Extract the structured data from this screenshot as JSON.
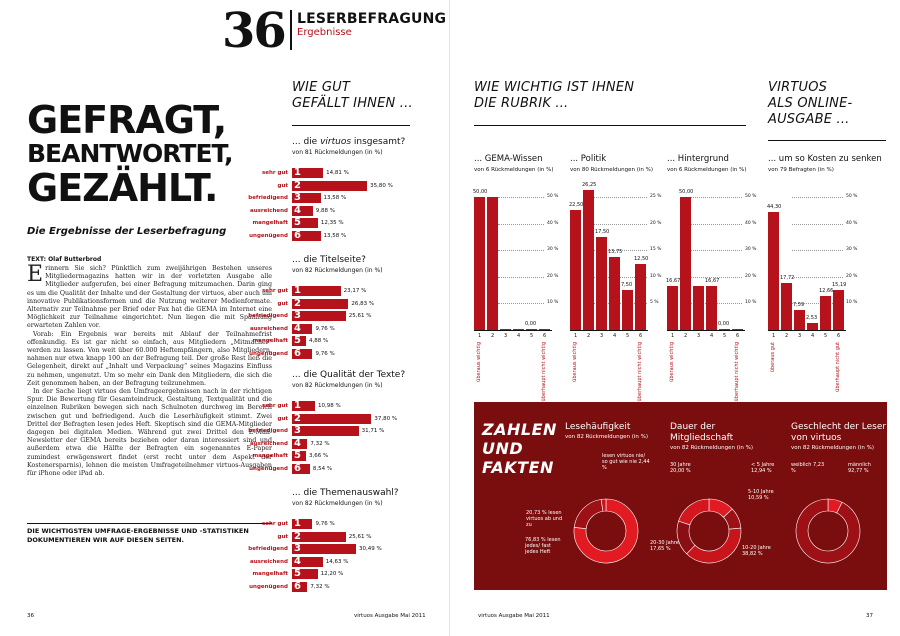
{
  "header": {
    "number": "36",
    "title": "LESERBEFRAGUNG",
    "subtitle": "Ergebnisse"
  },
  "headline": {
    "line1": "GEFRAGT,",
    "line2": "BEANTWORTET,",
    "line3": "GEZÄHLT.",
    "subtitle": "Die Ergebnisse der Leserbefragung"
  },
  "article": {
    "byline": "TEXT: Olaf Butterbrod",
    "dropcap": "E",
    "p1": "rinnern Sie sich? Pünktlich zum zweijährigen Bestehen unseres Mitgliedermagazins hatten wir in der vorletzten Ausgabe alle Mitglieder aufgerufen, bei einer Befragung mitzumachen. Darin ging es um die Qualität der Inhalte und der Gestaltung der virtuos, aber auch um innovative Publikationsformen und die Nutzung weiterer Medienformate. Alternativ zur Teilnahme per Brief oder Fax hat die GEMA im Internet eine Möglichkeit zur Teilnahme eingerichtet. Nun liegen die mit Spannung erwarteten Zahlen vor.",
    "p2": "Vorab: Ein Ergebnis war bereits mit Ablauf der Teilnahmefrist offenkundig. Es ist gar nicht so einfach, aus Mitgliedern „Mitmacher“ werden zu lassen. Von weit über 60.000 Heftempfängern, also Mitgliedern, nahmen nur etwa knapp 100 an der Befragung teil. Der große Rest ließ die Gelegenheit, direkt auf „Inhalt und Verpackung“ seines Magazins Einfluss zu nehmen, ungenutzt. Um so mehr ein Dank den Mitgliedern, die sich die Zeit genommen haben, an der Befragung teilzunehmen.",
    "p3": "In der Sache liegt virtuos den Umfrageergebnissen nach in der richtigen Spur. Die Bewertung für Gesamteindruck, Gestaltung, Textqualität und die einzelnen Rubriken bewegen sich nach Schulnoten durchweg im Bereich zwischen gut und befriedigend. Auch die Leserhäufigkeit stimmt. Zwei Drittel der Befragten lesen jedes Heft. Skeptisch sind die GEMA-Mitglieder dagegen bei digitalen Medien. Während gut zwei Drittel den E-Mail-Newsletter der GEMA bereits beziehen oder daran interessiert sind und außerdem etwa die Hälfte der Befragten ein sogenanntes E-Paper zumindest erwägenswert findet (erst recht unter dem Aspekt der Kostenersparnis), lehnen die meisten Umfrageteilnehmer virtuos-Ausgaben für iPhone oder iPad ab.",
    "bottom": "DIE WICHTIGSTEN UMFRAGE-ERGEBNISSE UND -STATISTIKEN DOKUMENTIEREN WIR AUF DIESEN SEITEN."
  },
  "section_gut": {
    "line1": "WIE GUT",
    "line2": "GEFÄLLT IHNEN ..."
  },
  "grade_labels": [
    "sehr gut",
    "gut",
    "befriedigend",
    "ausreichend",
    "mangelhaft",
    "ungenügend"
  ],
  "questions": [
    {
      "pre": "... die ",
      "em": "virtuos",
      "post": " insgesamt?",
      "sub": "von 81 Rückmeldungen (in %)"
    },
    {
      "pre": "... die Titelseite?",
      "em": "",
      "post": "",
      "sub": "von 82 Rückmeldungen (in %)"
    },
    {
      "pre": "... die Qualität der Texte?",
      "em": "",
      "post": "",
      "sub": "von 82 Rückmeldungen (in %)"
    },
    {
      "pre": "... die Themenauswahl?",
      "em": "",
      "post": "",
      "sub": "von 82 Rückmeldungen (in %)"
    }
  ],
  "section_wichtig": {
    "line1": "WIE WICHTIG IST IHNEN",
    "line2": "DIE RUBRIK ..."
  },
  "section_online": {
    "line1": "VIRTUOS",
    "line2": "ALS ONLINE-",
    "line3": "AUSGABE ..."
  },
  "footer": {
    "left_page": "36",
    "left_text": "virtuos   Ausgabe   Mai 2011",
    "right_text": "virtuos   Ausgabe   Mai 2011",
    "right_page": "37"
  },
  "zahlen": {
    "line1": "ZAHLEN",
    "line2": "UND",
    "line3": "FAKTEN"
  },
  "chart_data": [
    {
      "type": "bar",
      "orientation": "horizontal",
      "title": "... die virtuos insgesamt?",
      "subtitle": "von 81 Rückmeldungen (in %)",
      "categories": [
        "1",
        "2",
        "3",
        "4",
        "5",
        "6"
      ],
      "values": [
        14.81,
        35.8,
        13.58,
        9.88,
        12.35,
        13.58
      ],
      "labels": [
        "14,81 %",
        "35,80 %",
        "13,58 %",
        "9,88 %",
        "12,35 %",
        "13,58 %"
      ]
    },
    {
      "type": "bar",
      "orientation": "horizontal",
      "title": "... die Titelseite?",
      "subtitle": "von 82 Rückmeldungen (in %)",
      "categories": [
        "1",
        "2",
        "3",
        "4",
        "5",
        "6"
      ],
      "values": [
        23.17,
        26.83,
        25.61,
        9.76,
        4.88,
        9.76
      ],
      "labels": [
        "23,17 %",
        "26,83 %",
        "25,61 %",
        "9,76 %",
        "4,88 %",
        "9,76 %"
      ]
    },
    {
      "type": "bar",
      "orientation": "horizontal",
      "title": "... die Qualität der Texte?",
      "subtitle": "von 82 Rückmeldungen (in %)",
      "categories": [
        "1",
        "2",
        "3",
        "4",
        "5",
        "6"
      ],
      "values": [
        10.98,
        37.8,
        31.71,
        7.32,
        3.66,
        8.54
      ],
      "labels": [
        "10,98 %",
        "37,80 %",
        "31,71 %",
        "7,32 %",
        "3,66 %",
        "8,54 %"
      ]
    },
    {
      "type": "bar",
      "orientation": "horizontal",
      "title": "... die Themenauswahl?",
      "subtitle": "von 82 Rückmeldungen (in %)",
      "categories": [
        "1",
        "2",
        "3",
        "4",
        "5",
        "6"
      ],
      "values": [
        9.76,
        25.61,
        30.49,
        14.63,
        12.2,
        7.32
      ],
      "labels": [
        "9,76 %",
        "25,61 %",
        "30,49 %",
        "14,63 %",
        "12,20 %",
        "7,32 %"
      ]
    },
    {
      "type": "bar",
      "title": "... GEMA-Wissen",
      "subtitle": "von 6 Rückmeldungen (in %)",
      "categories": [
        "1",
        "2",
        "3",
        "4",
        "5",
        "6"
      ],
      "values": [
        50.0,
        50.0,
        0,
        0,
        0,
        0
      ],
      "labels": [
        "50,00",
        "",
        "",
        "",
        "0,00",
        ""
      ],
      "ylim": [
        0,
        50
      ],
      "yticks": [
        "10 %",
        "20 %",
        "30 %",
        "40 %",
        "50 %"
      ],
      "end_low": "überaus wichtig",
      "end_high": "überhaupt nicht wichtig"
    },
    {
      "type": "bar",
      "title": "... Politik",
      "subtitle": "von 80 Rückmeldungen (in %)",
      "categories": [
        "1",
        "2",
        "3",
        "4",
        "5",
        "6"
      ],
      "values": [
        22.5,
        26.25,
        17.5,
        13.75,
        7.5,
        12.5
      ],
      "labels": [
        "22,50",
        "26,25",
        "17,50",
        "13,75",
        "7,50",
        "12,50"
      ],
      "ylim": [
        0,
        25
      ],
      "yticks": [
        "5 %",
        "10 %",
        "15 %",
        "20 %",
        "25 %"
      ],
      "end_low": "überaus wichtig",
      "end_high": "überhaupt nicht wichtig"
    },
    {
      "type": "bar",
      "title": "... Hintergrund",
      "subtitle": "von 6 Rückmeldungen (in %)",
      "categories": [
        "1",
        "2",
        "3",
        "4",
        "5",
        "6"
      ],
      "values": [
        16.67,
        50.0,
        16.67,
        16.67,
        0,
        0
      ],
      "labels": [
        "16,67",
        "50,00",
        "",
        "16,67",
        "0,00",
        ""
      ],
      "ylim": [
        0,
        50
      ],
      "yticks": [
        "10 %",
        "20 %",
        "30 %",
        "40 %",
        "50 %"
      ],
      "end_low": "überaus wichtig",
      "end_high": "überhaupt nicht wichtig"
    },
    {
      "type": "bar",
      "title": "... um so Kosten zu senken",
      "subtitle": "von 79 Befragten (in %)",
      "categories": [
        "1",
        "2",
        "3",
        "4",
        "5",
        "6"
      ],
      "values": [
        44.3,
        17.72,
        7.59,
        2.53,
        12.66,
        15.19
      ],
      "labels": [
        "44,30",
        "17,72",
        "7,59",
        "2,53",
        "12,66",
        "15,19"
      ],
      "ylim": [
        0,
        50
      ],
      "yticks": [
        "10 %",
        "20 %",
        "30 %",
        "40 %",
        "50 %"
      ],
      "end_low": "überaus gut",
      "end_high": "überhaupt nicht gut"
    },
    {
      "type": "pie",
      "title": "Lesehäufigkeit",
      "subtitle": "von 82 Rückmeldungen (in %)",
      "categories": [
        "lesen jedes/fast jedes Heft",
        "lesen virtuos ab und zu",
        "lesen virtuos nie/so gut wie nie"
      ],
      "values": [
        76.83,
        20.73,
        2.44
      ],
      "labels": [
        "76,83 % lesen jedes/ fast jedes Heft",
        "20,73 % lesen virtuos ab und zu",
        "lesen virtuos nie/ so gut wie nie 2,44 %"
      ]
    },
    {
      "type": "pie",
      "title": "Dauer der Mitgliedschaft",
      "subtitle": "von 82 Rückmeldungen (in %)",
      "categories": [
        "< 5 Jahre",
        "5-10 Jahre",
        "10-20 Jahre",
        "20-30 Jahre",
        "30 Jahre"
      ],
      "values": [
        12.94,
        10.59,
        38.82,
        17.65,
        20.0
      ],
      "labels": [
        "< 5 Jahre 12,94 %",
        "5-10 Jahre 10,59 %",
        "10-20 Jahre 38,82 %",
        "20-30 Jahre 17,65 %",
        "30 Jahre 20,00 %"
      ]
    },
    {
      "type": "pie",
      "title": "Geschlecht der Leser von virtuos",
      "subtitle": "von 82 Rückmeldungen (in %)",
      "categories": [
        "weiblich",
        "männlich"
      ],
      "values": [
        7.23,
        92.77
      ],
      "labels": [
        "weiblich 7,23 %",
        "männlich 92,77 %"
      ]
    }
  ],
  "colors": {
    "accent": "#b5121b",
    "dark": "#7a0d0d",
    "ring_light": "#e21b23",
    "ring_dark": "#9c1016"
  }
}
